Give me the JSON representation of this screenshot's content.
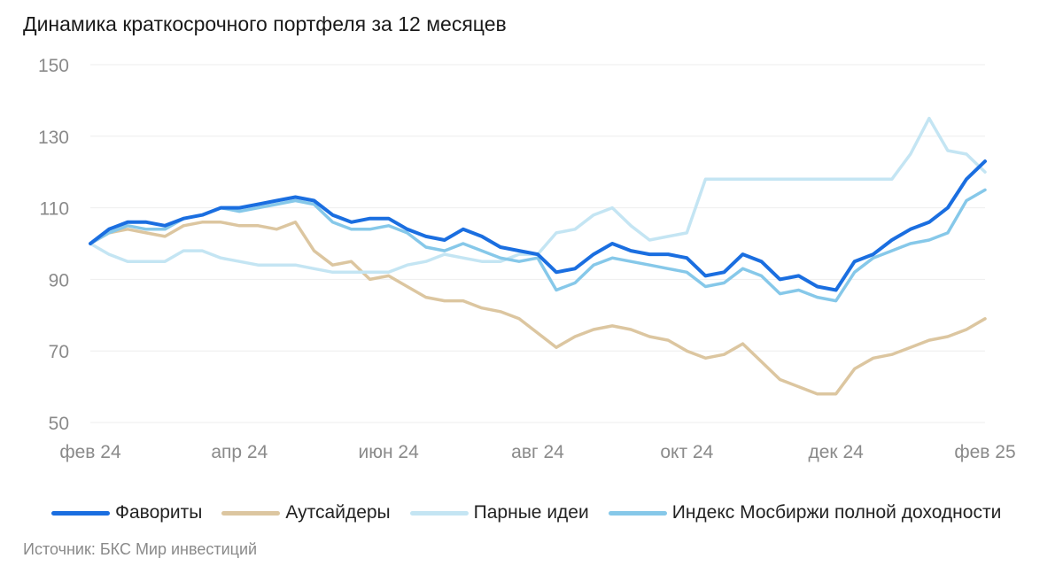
{
  "title": "Динамика краткосрочного портфеля за 12 месяцев",
  "source": "Источник: БКС Мир инвестиций",
  "colors": {
    "favorites": "#1a6ee0",
    "outsiders": "#dcc6a0",
    "pairs": "#c4e5f3",
    "index": "#86c8e9"
  },
  "chart_data": {
    "type": "line",
    "title": "Динамика краткосрочного портфеля за 12 месяцев",
    "xlabel": "",
    "ylabel": "",
    "ylim": [
      50,
      150
    ],
    "yticks": [
      "150",
      "130",
      "110",
      "90",
      "70",
      "50"
    ],
    "xticks": [
      "фев 24",
      "апр 24",
      "июн 24",
      "авг 24",
      "окт 24",
      "дек 24",
      "фев 25"
    ],
    "grid": true,
    "legend_position": "bottom",
    "x": [
      0,
      0.25,
      0.5,
      0.75,
      1,
      1.25,
      1.5,
      1.75,
      2,
      2.25,
      2.5,
      2.75,
      3,
      3.25,
      3.5,
      3.75,
      4,
      4.25,
      4.5,
      4.75,
      5,
      5.25,
      5.5,
      5.75,
      6,
      6.25,
      6.5,
      6.75,
      7,
      7.25,
      7.5,
      7.75,
      8,
      8.25,
      8.5,
      8.75,
      9,
      9.25,
      9.5,
      9.75,
      10,
      10.25,
      10.5,
      10.75,
      11,
      11.25,
      11.5,
      11.75,
      12
    ],
    "series": [
      {
        "name": "Фавориты",
        "color": "#1a6ee0",
        "values": [
          100,
          104,
          106,
          106,
          105,
          107,
          108,
          110,
          110,
          111,
          112,
          113,
          112,
          108,
          106,
          107,
          107,
          104,
          102,
          101,
          104,
          102,
          99,
          98,
          97,
          92,
          93,
          97,
          100,
          98,
          97,
          97,
          96,
          91,
          92,
          97,
          95,
          90,
          91,
          88,
          87,
          95,
          97,
          101,
          104,
          106,
          110,
          118,
          123
        ]
      },
      {
        "name": "Аутсайдеры",
        "color": "#dcc6a0",
        "values": [
          100,
          103,
          104,
          103,
          102,
          105,
          106,
          106,
          105,
          105,
          104,
          106,
          98,
          94,
          95,
          90,
          91,
          88,
          85,
          84,
          84,
          82,
          81,
          79,
          75,
          71,
          74,
          76,
          77,
          76,
          74,
          73,
          70,
          68,
          69,
          72,
          67,
          62,
          60,
          58,
          58,
          65,
          68,
          69,
          71,
          73,
          74,
          76,
          79
        ]
      },
      {
        "name": "Парные идеи",
        "color": "#c4e5f3",
        "values": [
          100,
          97,
          95,
          95,
          95,
          98,
          98,
          96,
          95,
          94,
          94,
          94,
          93,
          92,
          92,
          92,
          92,
          94,
          95,
          97,
          96,
          95,
          95,
          97,
          97,
          103,
          104,
          108,
          110,
          105,
          101,
          102,
          103,
          118,
          118,
          118,
          118,
          118,
          118,
          118,
          118,
          118,
          118,
          118,
          125,
          135,
          126,
          125,
          120
        ]
      },
      {
        "name": "Индекс Мосбиржи полной доходности",
        "color": "#86c8e9",
        "values": [
          100,
          103,
          105,
          104,
          104,
          107,
          108,
          110,
          109,
          110,
          111,
          112,
          111,
          106,
          104,
          104,
          105,
          103,
          99,
          98,
          100,
          98,
          96,
          95,
          96,
          87,
          89,
          94,
          96,
          95,
          94,
          93,
          92,
          88,
          89,
          93,
          91,
          86,
          87,
          85,
          84,
          92,
          96,
          98,
          100,
          101,
          103,
          112,
          115
        ]
      }
    ]
  }
}
